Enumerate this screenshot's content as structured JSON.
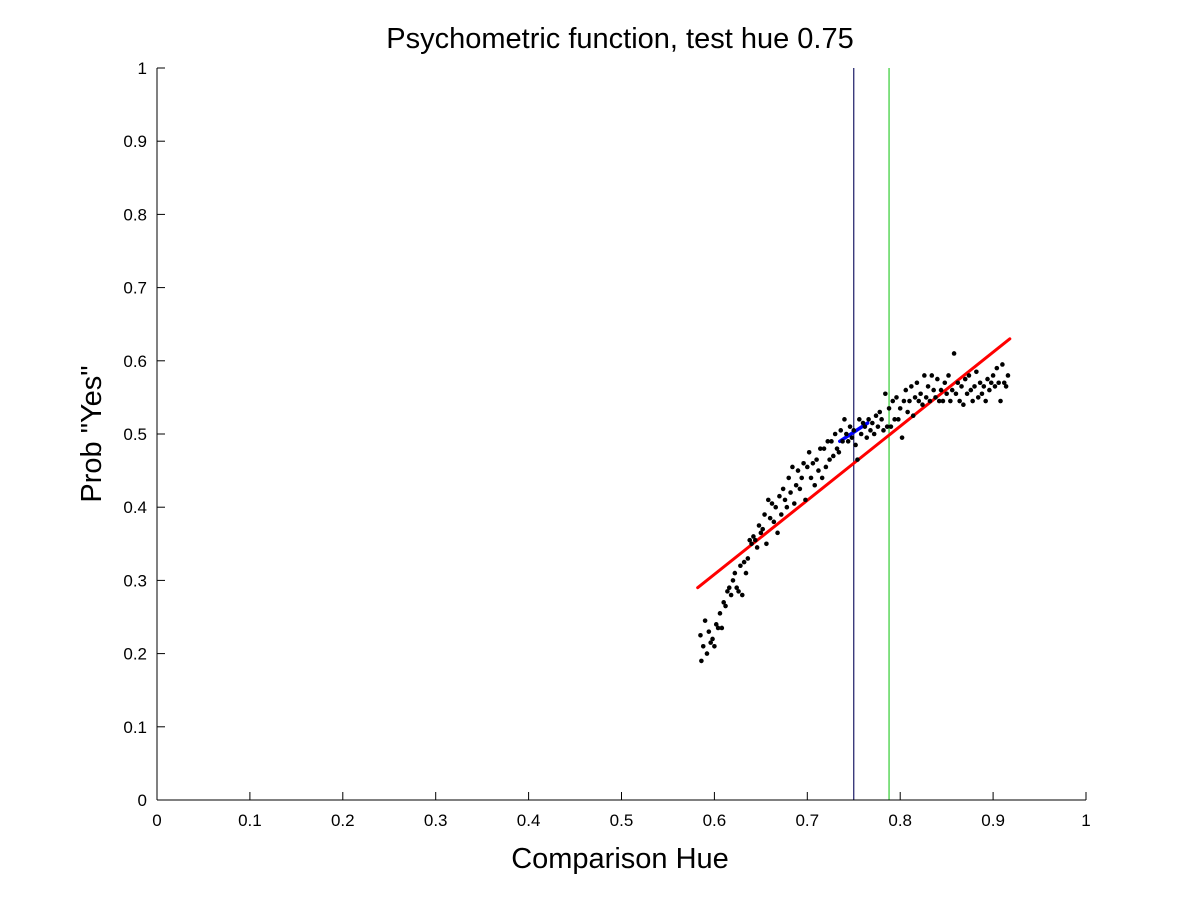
{
  "chart_data": {
    "type": "scatter",
    "title": "Psychometric function, test hue 0.75",
    "xlabel": "Comparison Hue",
    "ylabel": "Prob \"Yes\"",
    "xlim": [
      0,
      1
    ],
    "ylim": [
      0,
      1
    ],
    "xticks": [
      0,
      0.1,
      0.2,
      0.3,
      0.4,
      0.5,
      0.6,
      0.7,
      0.8,
      0.9,
      1
    ],
    "yticks": [
      0,
      0.1,
      0.2,
      0.3,
      0.4,
      0.5,
      0.6,
      0.7,
      0.8,
      0.9,
      1
    ],
    "xtick_labels": [
      "0",
      "0.1",
      "0.2",
      "0.3",
      "0.4",
      "0.5",
      "0.6",
      "0.7",
      "0.8",
      "0.9",
      "1"
    ],
    "ytick_labels": [
      "0",
      "0.1",
      "0.2",
      "0.3",
      "0.4",
      "0.5",
      "0.6",
      "0.7",
      "0.8",
      "0.9",
      "1"
    ],
    "grid": false,
    "legend": "none",
    "series": [
      {
        "kind": "points",
        "color": "#000000",
        "points": [
          [
            0.585,
            0.225
          ],
          [
            0.586,
            0.19
          ],
          [
            0.588,
            0.21
          ],
          [
            0.59,
            0.245
          ],
          [
            0.592,
            0.2
          ],
          [
            0.594,
            0.23
          ],
          [
            0.596,
            0.215
          ],
          [
            0.598,
            0.22
          ],
          [
            0.6,
            0.21
          ],
          [
            0.602,
            0.24
          ],
          [
            0.604,
            0.235
          ],
          [
            0.606,
            0.255
          ],
          [
            0.608,
            0.235
          ],
          [
            0.61,
            0.27
          ],
          [
            0.612,
            0.265
          ],
          [
            0.614,
            0.285
          ],
          [
            0.616,
            0.29
          ],
          [
            0.618,
            0.28
          ],
          [
            0.62,
            0.3
          ],
          [
            0.622,
            0.31
          ],
          [
            0.624,
            0.29
          ],
          [
            0.626,
            0.285
          ],
          [
            0.628,
            0.32
          ],
          [
            0.63,
            0.28
          ],
          [
            0.632,
            0.325
          ],
          [
            0.634,
            0.31
          ],
          [
            0.636,
            0.33
          ],
          [
            0.638,
            0.355
          ],
          [
            0.64,
            0.35
          ],
          [
            0.642,
            0.36
          ],
          [
            0.644,
            0.355
          ],
          [
            0.646,
            0.345
          ],
          [
            0.648,
            0.375
          ],
          [
            0.65,
            0.365
          ],
          [
            0.652,
            0.37
          ],
          [
            0.654,
            0.39
          ],
          [
            0.656,
            0.35
          ],
          [
            0.658,
            0.41
          ],
          [
            0.66,
            0.385
          ],
          [
            0.662,
            0.405
          ],
          [
            0.664,
            0.38
          ],
          [
            0.666,
            0.4
          ],
          [
            0.668,
            0.365
          ],
          [
            0.67,
            0.415
          ],
          [
            0.672,
            0.39
          ],
          [
            0.674,
            0.425
          ],
          [
            0.676,
            0.41
          ],
          [
            0.678,
            0.4
          ],
          [
            0.68,
            0.44
          ],
          [
            0.682,
            0.42
          ],
          [
            0.684,
            0.455
          ],
          [
            0.686,
            0.405
          ],
          [
            0.688,
            0.43
          ],
          [
            0.69,
            0.45
          ],
          [
            0.692,
            0.425
          ],
          [
            0.694,
            0.44
          ],
          [
            0.696,
            0.46
          ],
          [
            0.698,
            0.41
          ],
          [
            0.7,
            0.455
          ],
          [
            0.702,
            0.475
          ],
          [
            0.704,
            0.44
          ],
          [
            0.706,
            0.46
          ],
          [
            0.708,
            0.43
          ],
          [
            0.71,
            0.465
          ],
          [
            0.712,
            0.45
          ],
          [
            0.714,
            0.48
          ],
          [
            0.716,
            0.44
          ],
          [
            0.718,
            0.48
          ],
          [
            0.72,
            0.455
          ],
          [
            0.722,
            0.49
          ],
          [
            0.724,
            0.465
          ],
          [
            0.726,
            0.49
          ],
          [
            0.728,
            0.47
          ],
          [
            0.73,
            0.5
          ],
          [
            0.732,
            0.48
          ],
          [
            0.734,
            0.475
          ],
          [
            0.736,
            0.505
          ],
          [
            0.738,
            0.49
          ],
          [
            0.74,
            0.52
          ],
          [
            0.742,
            0.5
          ],
          [
            0.744,
            0.49
          ],
          [
            0.746,
            0.51
          ],
          [
            0.748,
            0.495
          ],
          [
            0.75,
            0.505
          ],
          [
            0.752,
            0.485
          ],
          [
            0.754,
            0.465
          ],
          [
            0.756,
            0.52
          ],
          [
            0.758,
            0.5
          ],
          [
            0.76,
            0.515
          ],
          [
            0.762,
            0.51
          ],
          [
            0.764,
            0.495
          ],
          [
            0.766,
            0.52
          ],
          [
            0.768,
            0.505
          ],
          [
            0.77,
            0.515
          ],
          [
            0.772,
            0.5
          ],
          [
            0.774,
            0.525
          ],
          [
            0.776,
            0.51
          ],
          [
            0.778,
            0.53
          ],
          [
            0.78,
            0.52
          ],
          [
            0.782,
            0.505
          ],
          [
            0.784,
            0.555
          ],
          [
            0.786,
            0.51
          ],
          [
            0.788,
            0.535
          ],
          [
            0.79,
            0.51
          ],
          [
            0.792,
            0.545
          ],
          [
            0.794,
            0.52
          ],
          [
            0.796,
            0.55
          ],
          [
            0.798,
            0.52
          ],
          [
            0.8,
            0.535
          ],
          [
            0.802,
            0.495
          ],
          [
            0.804,
            0.545
          ],
          [
            0.806,
            0.56
          ],
          [
            0.808,
            0.53
          ],
          [
            0.81,
            0.545
          ],
          [
            0.812,
            0.565
          ],
          [
            0.814,
            0.525
          ],
          [
            0.816,
            0.55
          ],
          [
            0.818,
            0.57
          ],
          [
            0.82,
            0.545
          ],
          [
            0.822,
            0.555
          ],
          [
            0.824,
            0.54
          ],
          [
            0.826,
            0.58
          ],
          [
            0.828,
            0.55
          ],
          [
            0.83,
            0.565
          ],
          [
            0.832,
            0.545
          ],
          [
            0.834,
            0.58
          ],
          [
            0.836,
            0.56
          ],
          [
            0.838,
            0.55
          ],
          [
            0.84,
            0.575
          ],
          [
            0.842,
            0.545
          ],
          [
            0.844,
            0.56
          ],
          [
            0.846,
            0.545
          ],
          [
            0.848,
            0.57
          ],
          [
            0.85,
            0.555
          ],
          [
            0.852,
            0.58
          ],
          [
            0.854,
            0.545
          ],
          [
            0.856,
            0.56
          ],
          [
            0.858,
            0.61
          ],
          [
            0.86,
            0.555
          ],
          [
            0.862,
            0.57
          ],
          [
            0.864,
            0.545
          ],
          [
            0.866,
            0.565
          ],
          [
            0.868,
            0.54
          ],
          [
            0.87,
            0.575
          ],
          [
            0.872,
            0.555
          ],
          [
            0.874,
            0.58
          ],
          [
            0.876,
            0.56
          ],
          [
            0.878,
            0.545
          ],
          [
            0.88,
            0.565
          ],
          [
            0.882,
            0.585
          ],
          [
            0.884,
            0.55
          ],
          [
            0.886,
            0.57
          ],
          [
            0.888,
            0.555
          ],
          [
            0.89,
            0.565
          ],
          [
            0.892,
            0.545
          ],
          [
            0.894,
            0.575
          ],
          [
            0.896,
            0.56
          ],
          [
            0.898,
            0.57
          ],
          [
            0.9,
            0.58
          ],
          [
            0.902,
            0.565
          ],
          [
            0.904,
            0.59
          ],
          [
            0.906,
            0.57
          ],
          [
            0.908,
            0.545
          ],
          [
            0.91,
            0.595
          ],
          [
            0.912,
            0.57
          ],
          [
            0.914,
            0.565
          ],
          [
            0.916,
            0.58
          ]
        ]
      },
      {
        "kind": "line",
        "color": "#ff0000",
        "points": [
          [
            0.582,
            0.29
          ],
          [
            0.918,
            0.63
          ]
        ]
      },
      {
        "kind": "line",
        "color": "#0000ff",
        "points": [
          [
            0.735,
            0.49
          ],
          [
            0.765,
            0.515
          ]
        ]
      }
    ],
    "vlines": [
      {
        "x": 0.75,
        "color": "#1a1a66"
      },
      {
        "x": 0.788,
        "color": "#33cc33"
      }
    ]
  }
}
